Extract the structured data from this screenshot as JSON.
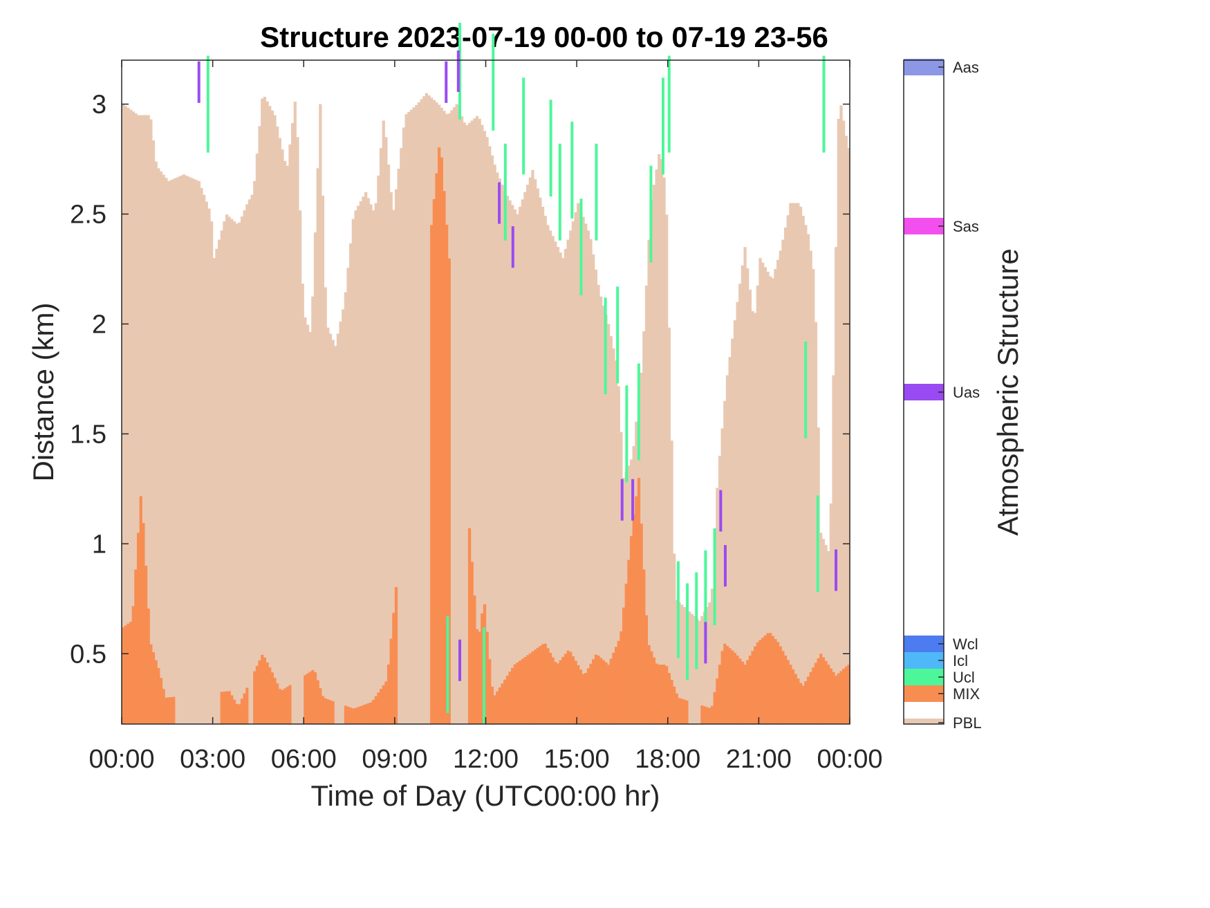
{
  "chart_data": {
    "type": "bar",
    "title": "Structure 2023-07-19 00-00 to 07-19 23-56",
    "xlabel": "Time of Day (UTC00:00 hr)",
    "ylabel": "Distance (km)",
    "x_range_hours": [
      0,
      24
    ],
    "ylim": [
      0.18,
      3.2
    ],
    "x_ticks": [
      "00:00",
      "03:00",
      "06:00",
      "09:00",
      "12:00",
      "15:00",
      "18:00",
      "21:00",
      "00:00"
    ],
    "y_ticks": [
      "0.5",
      "1",
      "1.5",
      "2",
      "2.5",
      "3"
    ],
    "y_tick_values": [
      0.5,
      1,
      1.5,
      2,
      2.5,
      3
    ],
    "grid": false,
    "colorbar": {
      "label": "Atmospheric Structure",
      "categories": [
        {
          "name": "PBL",
          "color": "#E9C8B2"
        },
        {
          "name": "MIX",
          "color": "#F88D52"
        },
        {
          "name": "Ucl",
          "color": "#4DF799"
        },
        {
          "name": "Icl",
          "color": "#4EB8F8"
        },
        {
          "name": "Wcl",
          "color": "#4D7BF0"
        },
        {
          "name": "Uas",
          "color": "#9A4AF2"
        },
        {
          "name": "Sas",
          "color": "#F34FEF"
        },
        {
          "name": "Aas",
          "color": "#8C98E6"
        }
      ]
    },
    "series": [
      {
        "name": "PBL",
        "color": "#E9C8B2",
        "points": [
          [
            0,
            3.0
          ],
          [
            0.5,
            2.95
          ],
          [
            0.9,
            2.95
          ],
          [
            1.1,
            2.72
          ],
          [
            1.5,
            2.65
          ],
          [
            2.0,
            2.68
          ],
          [
            2.5,
            2.65
          ],
          [
            2.9,
            2.5
          ],
          [
            3.0,
            2.3
          ],
          [
            3.4,
            2.5
          ],
          [
            3.8,
            2.45
          ],
          [
            4.1,
            2.55
          ],
          [
            4.3,
            2.6
          ],
          [
            4.6,
            3.05
          ],
          [
            5.0,
            2.95
          ],
          [
            5.4,
            2.7
          ],
          [
            5.7,
            3.05
          ],
          [
            5.95,
            2.05
          ],
          [
            6.2,
            1.95
          ],
          [
            6.5,
            3.0
          ],
          [
            6.7,
            2.0
          ],
          [
            7.0,
            1.9
          ],
          [
            7.3,
            2.1
          ],
          [
            7.6,
            2.5
          ],
          [
            8.0,
            2.6
          ],
          [
            8.3,
            2.5
          ],
          [
            8.6,
            2.95
          ],
          [
            8.9,
            2.5
          ],
          [
            9.3,
            2.95
          ],
          [
            9.7,
            3.0
          ],
          [
            10.0,
            3.05
          ],
          [
            10.4,
            3.0
          ],
          [
            10.7,
            2.95
          ],
          [
            11.0,
            3.0
          ],
          [
            11.3,
            2.9
          ],
          [
            11.7,
            2.95
          ],
          [
            12.0,
            2.85
          ],
          [
            12.3,
            2.7
          ],
          [
            12.6,
            2.6
          ],
          [
            13.0,
            2.5
          ],
          [
            13.5,
            2.7
          ],
          [
            14.0,
            2.45
          ],
          [
            14.5,
            2.3
          ],
          [
            15.0,
            2.55
          ],
          [
            15.4,
            2.4
          ],
          [
            15.7,
            2.15
          ],
          [
            16.0,
            2.0
          ],
          [
            16.3,
            1.8
          ],
          [
            16.5,
            1.3
          ],
          [
            16.8,
            1.4
          ],
          [
            17.1,
            1.8
          ],
          [
            17.4,
            2.55
          ],
          [
            17.7,
            2.8
          ],
          [
            17.9,
            2.6
          ],
          [
            18.2,
            0.75
          ],
          [
            18.6,
            0.7
          ],
          [
            19.0,
            0.65
          ],
          [
            19.4,
            0.75
          ],
          [
            19.6,
            1.3
          ],
          [
            19.9,
            1.75
          ],
          [
            20.2,
            2.05
          ],
          [
            20.5,
            2.35
          ],
          [
            20.8,
            2.0
          ],
          [
            21.0,
            2.3
          ],
          [
            21.4,
            2.2
          ],
          [
            21.7,
            2.35
          ],
          [
            22.0,
            2.55
          ],
          [
            22.3,
            2.55
          ],
          [
            22.6,
            2.4
          ],
          [
            22.8,
            2.2
          ],
          [
            23.0,
            1.05
          ],
          [
            23.3,
            0.95
          ],
          [
            23.6,
            3.05
          ],
          [
            23.9,
            2.8
          ]
        ]
      },
      {
        "name": "MIX",
        "color": "#F88D52",
        "points": [
          [
            0.0,
            0.62
          ],
          [
            0.3,
            0.65
          ],
          [
            0.6,
            1.25
          ],
          [
            0.9,
            0.55
          ],
          [
            1.2,
            0.42
          ],
          [
            1.4,
            0.3
          ],
          [
            3.5,
            0.33
          ],
          [
            3.8,
            0.26
          ],
          [
            4.6,
            0.5
          ],
          [
            4.9,
            0.42
          ],
          [
            5.2,
            0.33
          ],
          [
            6.3,
            0.43
          ],
          [
            6.6,
            0.3
          ],
          [
            7.6,
            0.25
          ],
          [
            8.2,
            0.28
          ],
          [
            8.7,
            0.38
          ],
          [
            10.45,
            2.85
          ],
          [
            11.7,
            0.55
          ],
          [
            11.9,
            0.75
          ],
          [
            12.2,
            0.3
          ],
          [
            12.9,
            0.45
          ],
          [
            13.4,
            0.5
          ],
          [
            13.9,
            0.55
          ],
          [
            14.3,
            0.45
          ],
          [
            14.7,
            0.52
          ],
          [
            15.2,
            0.4
          ],
          [
            15.6,
            0.5
          ],
          [
            16.0,
            0.45
          ],
          [
            16.4,
            0.58
          ],
          [
            16.8,
            1.1
          ],
          [
            17.0,
            1.3
          ],
          [
            17.3,
            0.55
          ],
          [
            17.6,
            0.45
          ],
          [
            17.9,
            0.45
          ],
          [
            18.3,
            0.3
          ],
          [
            19.4,
            0.25
          ],
          [
            19.8,
            0.55
          ],
          [
            20.2,
            0.5
          ],
          [
            20.5,
            0.45
          ],
          [
            20.9,
            0.55
          ],
          [
            21.3,
            0.6
          ],
          [
            21.6,
            0.55
          ],
          [
            22.0,
            0.45
          ],
          [
            22.4,
            0.35
          ],
          [
            23.0,
            0.5
          ],
          [
            23.5,
            0.4
          ],
          [
            23.9,
            0.45
          ]
        ]
      },
      {
        "name": "Ucl",
        "color": "#4DF799",
        "points": [
          [
            2.8,
            3.0
          ],
          [
            10.7,
            0.45
          ],
          [
            11.1,
            3.15
          ],
          [
            11.9,
            0.4
          ],
          [
            12.2,
            3.1
          ],
          [
            12.6,
            2.6
          ],
          [
            13.2,
            2.9
          ],
          [
            14.1,
            2.8
          ],
          [
            14.4,
            2.6
          ],
          [
            14.8,
            2.7
          ],
          [
            15.1,
            2.35
          ],
          [
            15.6,
            2.6
          ],
          [
            15.9,
            1.9
          ],
          [
            16.3,
            1.95
          ],
          [
            16.6,
            1.5
          ],
          [
            17.0,
            1.6
          ],
          [
            17.4,
            2.5
          ],
          [
            17.8,
            2.9
          ],
          [
            18.0,
            3.0
          ],
          [
            18.3,
            0.7
          ],
          [
            18.6,
            0.6
          ],
          [
            18.9,
            0.65
          ],
          [
            19.2,
            0.75
          ],
          [
            19.5,
            0.85
          ],
          [
            22.5,
            1.7
          ],
          [
            22.9,
            1.0
          ],
          [
            23.1,
            3.0
          ]
        ]
      },
      {
        "name": "Uas",
        "color": "#9A4AF2",
        "points": [
          [
            2.5,
            3.1
          ],
          [
            10.65,
            3.1
          ],
          [
            11.05,
            3.15
          ],
          [
            11.1,
            0.47
          ],
          [
            12.4,
            2.55
          ],
          [
            12.85,
            2.35
          ],
          [
            16.45,
            1.2
          ],
          [
            16.8,
            1.2
          ],
          [
            19.2,
            0.55
          ],
          [
            19.7,
            1.15
          ],
          [
            19.85,
            0.9
          ],
          [
            23.5,
            0.88
          ]
        ]
      }
    ]
  }
}
